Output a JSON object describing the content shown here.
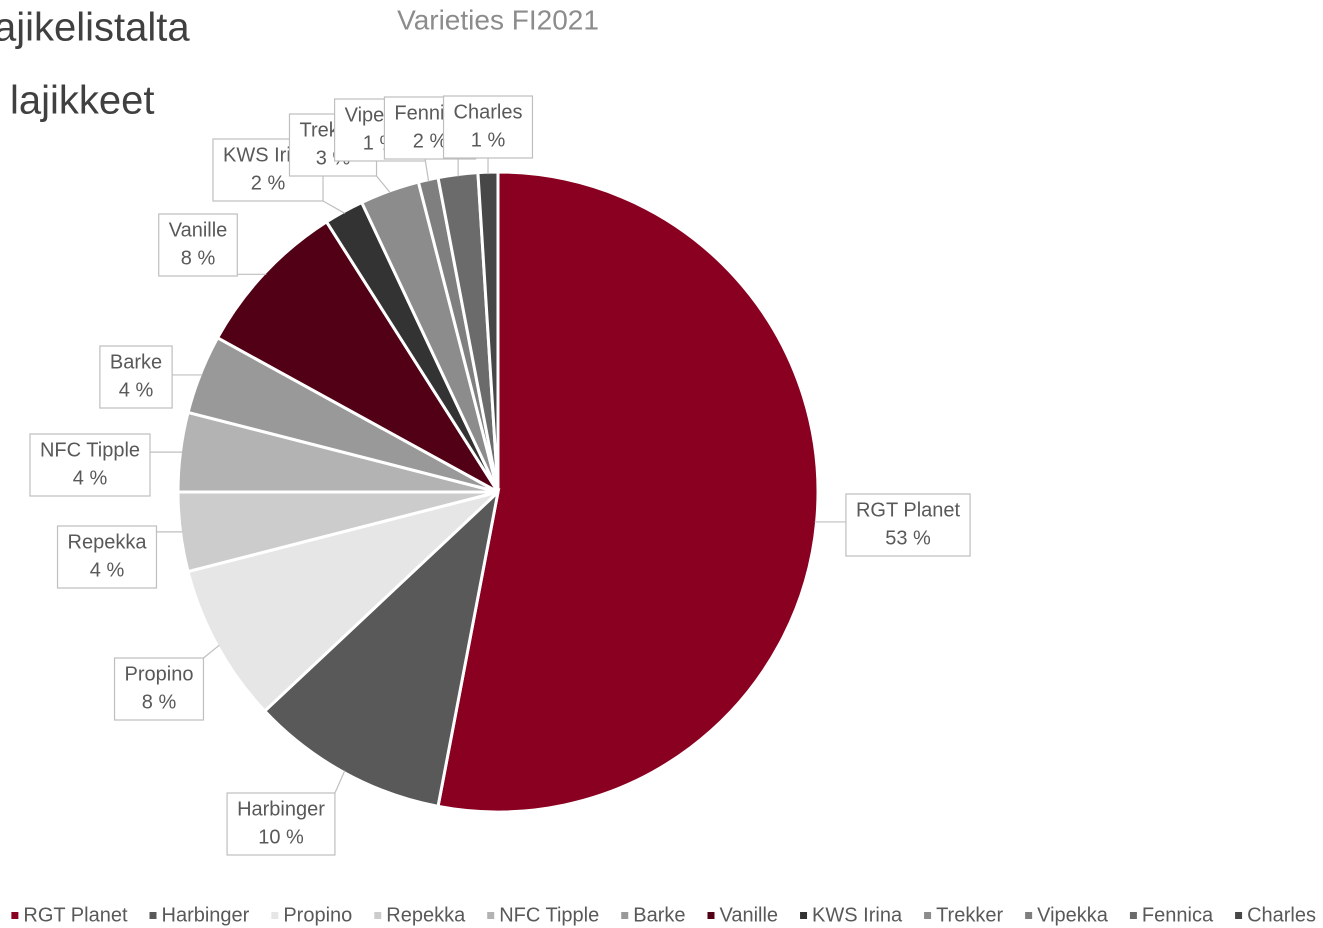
{
  "slide_text": [
    "ajikelistalta",
    "lajikkeet"
  ],
  "chart_data": {
    "type": "pie",
    "title": "Varieties FI2021",
    "categories": [
      "RGT Planet",
      "Harbinger",
      "Propino",
      "Repekka",
      "NFC Tipple",
      "Barke",
      "Vanille",
      "KWS Irina",
      "Trekker",
      "Vipekka",
      "Fennica",
      "Charles"
    ],
    "values": [
      53,
      10,
      8,
      4,
      4,
      4,
      8,
      2,
      3,
      1,
      2,
      1
    ],
    "value_labels": [
      "53 %",
      "10 %",
      "8 %",
      "4 %",
      "4 %",
      "4 %",
      "8 %",
      "2 %",
      "3 %",
      "1 %",
      "2 %",
      "1 %"
    ],
    "colors": [
      "#8a0021",
      "#595959",
      "#e6e6e6",
      "#cccccc",
      "#b3b3b3",
      "#999999",
      "#520016",
      "#333333",
      "#8c8c8c",
      "#7f7f7f",
      "#6b6b6b",
      "#474747"
    ],
    "legend": "bottom"
  }
}
